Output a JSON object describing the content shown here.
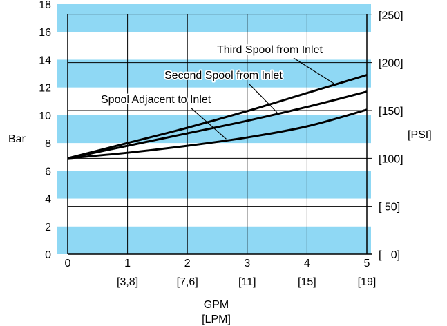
{
  "chart_data": {
    "type": "line",
    "xlabel": "GPM",
    "xlabel_secondary": "[LPM]",
    "ylabel": "Bar",
    "ylabel_secondary": "[PSI]",
    "xlim": [
      0,
      5
    ],
    "ylim": [
      0,
      18
    ],
    "x_ticks": [
      {
        "value": 0,
        "label": "0",
        "sub": ""
      },
      {
        "value": 1,
        "label": "1",
        "sub": "[3,8]"
      },
      {
        "value": 2,
        "label": "2",
        "sub": "[7,6]"
      },
      {
        "value": 3,
        "label": "3",
        "sub": "[11]"
      },
      {
        "value": 4,
        "label": "4",
        "sub": "[15]"
      },
      {
        "value": 5,
        "label": "5",
        "sub": "[19]"
      }
    ],
    "y_ticks": [
      0,
      2,
      4,
      6,
      8,
      10,
      12,
      14,
      16,
      18
    ],
    "y2_ticks": [
      {
        "value": 0,
        "label": "[   0]"
      },
      {
        "value": 50,
        "label": "[ 50]"
      },
      {
        "value": 100,
        "label": "[100]"
      },
      {
        "value": 150,
        "label": "[150]"
      },
      {
        "value": 200,
        "label": "[200]"
      },
      {
        "value": 250,
        "label": "[250]"
      }
    ],
    "psi_per_bar": 14.5038,
    "band_color": "#8fd8f4",
    "bands": [
      [
        0,
        2
      ],
      [
        4,
        6
      ],
      [
        8,
        10
      ],
      [
        12,
        14
      ],
      [
        16,
        18
      ]
    ],
    "series": [
      {
        "name": "Spool Adjacent to Inlet",
        "x": [
          0,
          1,
          2,
          3,
          4,
          5
        ],
        "y": [
          6.9,
          7.3,
          7.8,
          8.4,
          9.2,
          10.4
        ]
      },
      {
        "name": "Second Spool from Inlet",
        "x": [
          0,
          1,
          2,
          3,
          4,
          5
        ],
        "y": [
          6.9,
          7.8,
          8.7,
          9.6,
          10.6,
          11.7
        ]
      },
      {
        "name": "Third Spool from Inlet",
        "x": [
          0,
          1,
          2,
          3,
          4,
          5
        ],
        "y": [
          6.9,
          8.0,
          9.1,
          10.3,
          11.6,
          12.9
        ]
      }
    ],
    "annotations": [
      {
        "text": "Third Spool from Inlet",
        "series": 2,
        "at_x": 4.45
      },
      {
        "text": "Second Spool from Inlet",
        "series": 1,
        "at_x": 3.5
      },
      {
        "text": "Spool Adjacent to Inlet",
        "series": 0,
        "at_x": 2.65
      }
    ]
  }
}
